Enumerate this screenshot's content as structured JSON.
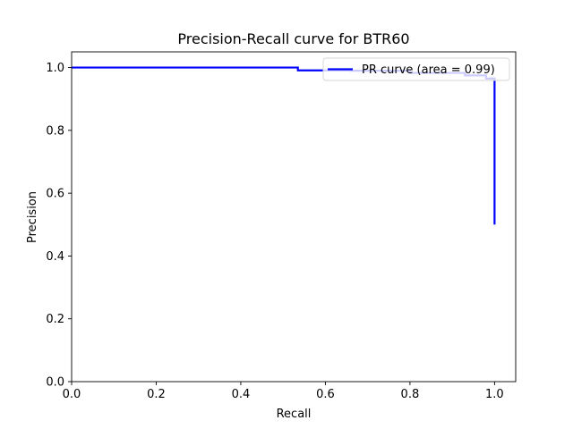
{
  "chart_data": {
    "type": "line",
    "title": "Precision-Recall curve for BTR60",
    "xlabel": "Recall",
    "ylabel": "Precision",
    "xlim": [
      0.0,
      1.05
    ],
    "ylim": [
      0.0,
      1.05
    ],
    "xticks": [
      "0.0",
      "0.2",
      "0.4",
      "0.6",
      "0.8",
      "1.0"
    ],
    "yticks": [
      "0.0",
      "0.2",
      "0.4",
      "0.6",
      "0.8",
      "1.0"
    ],
    "grid": false,
    "legend_position": "upper right",
    "series": [
      {
        "name": "PR curve (area = 0.99)",
        "color": "#0000ff",
        "step": true,
        "x": [
          0.0,
          0.535,
          0.535,
          0.66,
          0.66,
          0.8,
          0.8,
          0.93,
          0.93,
          0.98,
          0.98,
          1.0,
          1.0
        ],
        "y": [
          1.0,
          1.0,
          0.991,
          0.991,
          0.99,
          0.99,
          0.983,
          0.983,
          0.975,
          0.975,
          0.965,
          0.965,
          0.5
        ]
      }
    ]
  }
}
